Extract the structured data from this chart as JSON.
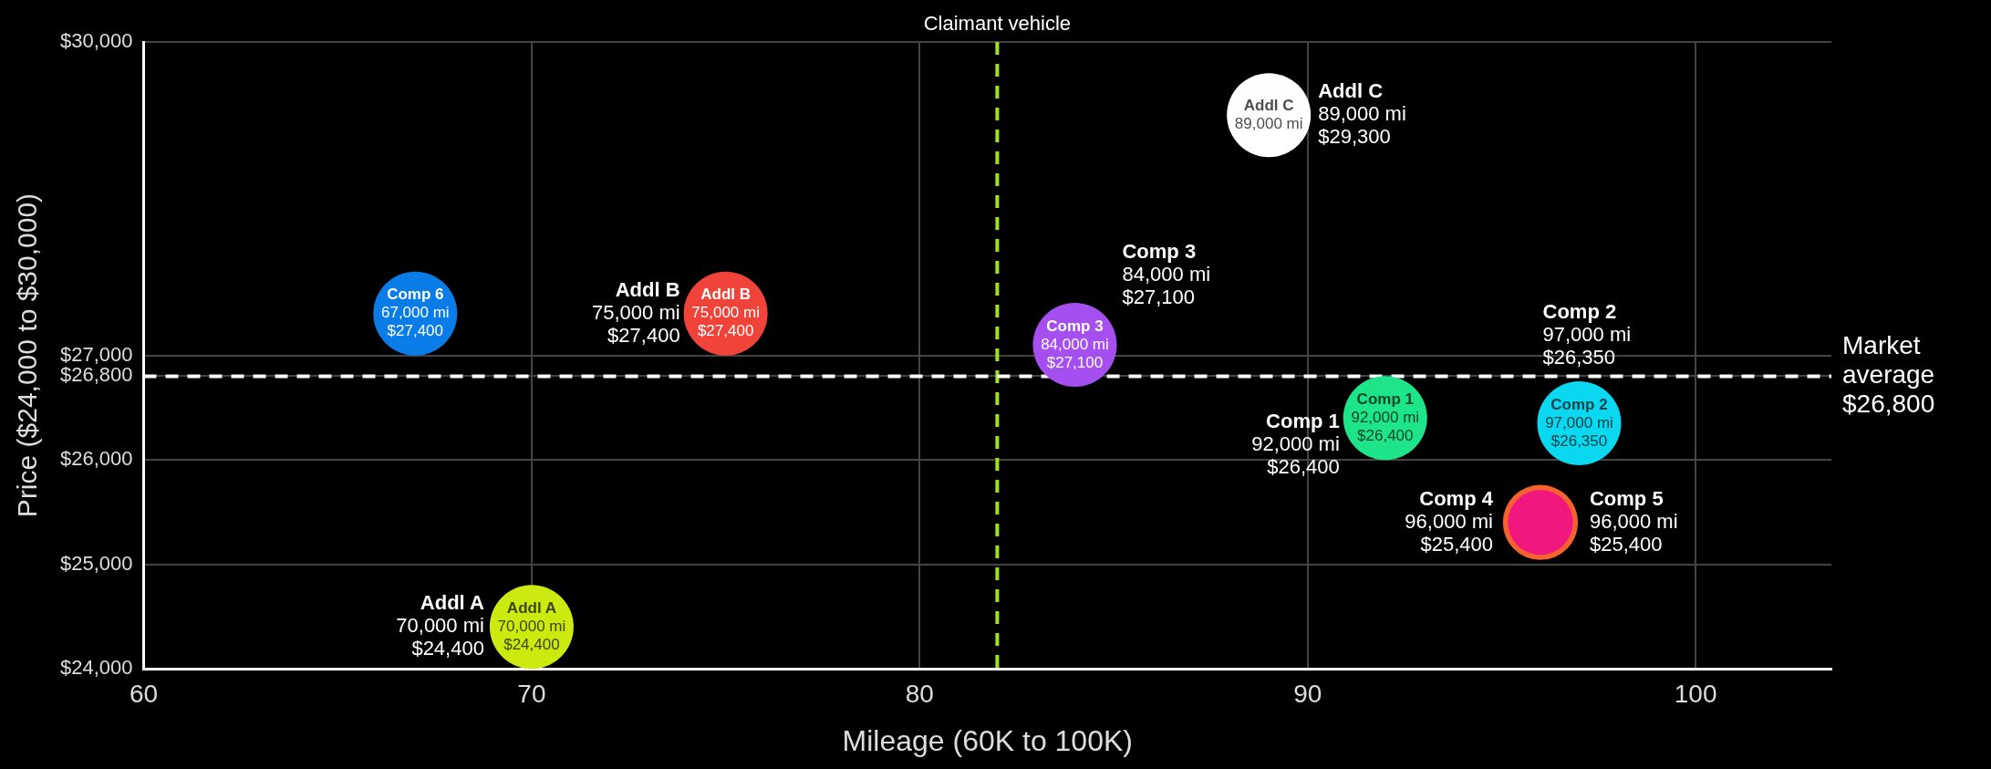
{
  "chart_data": {
    "type": "bubble",
    "xlabel": "Mileage (60K to 100K)",
    "ylabel": "Price ($24,000 to $30,000)",
    "xlim": [
      60,
      103.5
    ],
    "xticks": [
      60,
      70,
      80,
      90,
      100
    ],
    "ylim": [
      24000,
      30000
    ],
    "yticks": [
      {
        "value": 24000,
        "label": "$24,000"
      },
      {
        "value": 25000,
        "label": "$25,000"
      },
      {
        "value": 26000,
        "label": "$26,000"
      },
      {
        "value": 26800,
        "label": "$26,800"
      },
      {
        "value": 27000,
        "label": "$27,000"
      },
      {
        "value": 30000,
        "label": "$30,000"
      }
    ],
    "grid": true,
    "legend": false,
    "series": [
      {
        "name": "Comp 6",
        "color": "#0a7ce8",
        "x": [
          67
        ],
        "values": [
          27400
        ],
        "sizes": [
          1
        ],
        "value_labels": [
          "67,000 mi\n$27,400"
        ]
      },
      {
        "name": "Addl B",
        "color": "#f0443a",
        "x": [
          75
        ],
        "values": [
          27400
        ],
        "sizes": [
          1
        ],
        "value_labels": [
          "75,000 mi\n$27,400"
        ]
      },
      {
        "name": "Addl A",
        "color": "#ccea10",
        "x": [
          70
        ],
        "values": [
          24400
        ],
        "sizes": [
          1
        ],
        "value_labels": [
          "70,000 mi\n$24,400"
        ]
      },
      {
        "name": "Comp 3",
        "color": "#a64ff0",
        "x": [
          84
        ],
        "values": [
          27100
        ],
        "sizes": [
          1
        ],
        "value_labels": [
          "84,000 mi\n$27,100"
        ]
      },
      {
        "name": "Addl C",
        "color": "#ffffff",
        "x": [
          89
        ],
        "values": [
          29300
        ],
        "sizes": [
          1
        ]
      },
      {
        "name": "Comp 1",
        "color": "#1ee58a",
        "x": [
          92
        ],
        "values": [
          26400
        ],
        "sizes": [
          1
        ],
        "value_labels": [
          "92,000 mi\n$26,400"
        ]
      },
      {
        "name": "Comp 2",
        "color": "#0ad8f0",
        "x": [
          97
        ],
        "values": [
          26350
        ],
        "sizes": [
          1
        ],
        "value_labels": [
          "97,000 mi\n$26,350"
        ]
      },
      {
        "color": "#f0187f",
        "x": [
          96
        ],
        "values": [
          25400
        ],
        "sizes": [
          0.6
        ]
      },
      {
        "color": "#f5622e",
        "x": [
          96
        ],
        "values": [
          25400
        ],
        "sizes": [
          0.8
        ]
      }
    ],
    "ref_lines": [
      {
        "axis": "x",
        "value": 82,
        "label": "Claimant vehicle",
        "color": "#9ee21a",
        "line_style": "dashed"
      },
      {
        "axis": "y",
        "value": 26800,
        "label": "Market\naverage\n$26,800",
        "color": "#ffffff",
        "line_style": "dashed"
      }
    ],
    "annotations": [
      {
        "text": "Addl B\n75,000 mi\n$27,400",
        "x": 75,
        "y": 27400
      },
      {
        "text": "Addl A\n70,000 mi\n$24,400",
        "x": 70,
        "y": 24400
      },
      {
        "text": "Addl C\n89,000 mi\n$29,300",
        "x": 89,
        "y": 29300
      },
      {
        "text": "Comp 3\n84,000 mi\n$27,100",
        "x": 84,
        "y": 27100
      },
      {
        "text": "Comp 1\n92,000 mi\n$26,400",
        "x": 92,
        "y": 26400
      },
      {
        "text": "Comp 2\n97,000 mi\n$26,350",
        "x": 97,
        "y": 26350
      },
      {
        "text": "Comp 4\n96,000 mi\n$25,400",
        "x": 96,
        "y": 25400
      },
      {
        "text": "Comp 5\n96,000 mi\n$25,400",
        "x": 96,
        "y": 25400
      },
      {
        "text": "89,000 mi",
        "x": 89,
        "y": 29300
      }
    ]
  }
}
